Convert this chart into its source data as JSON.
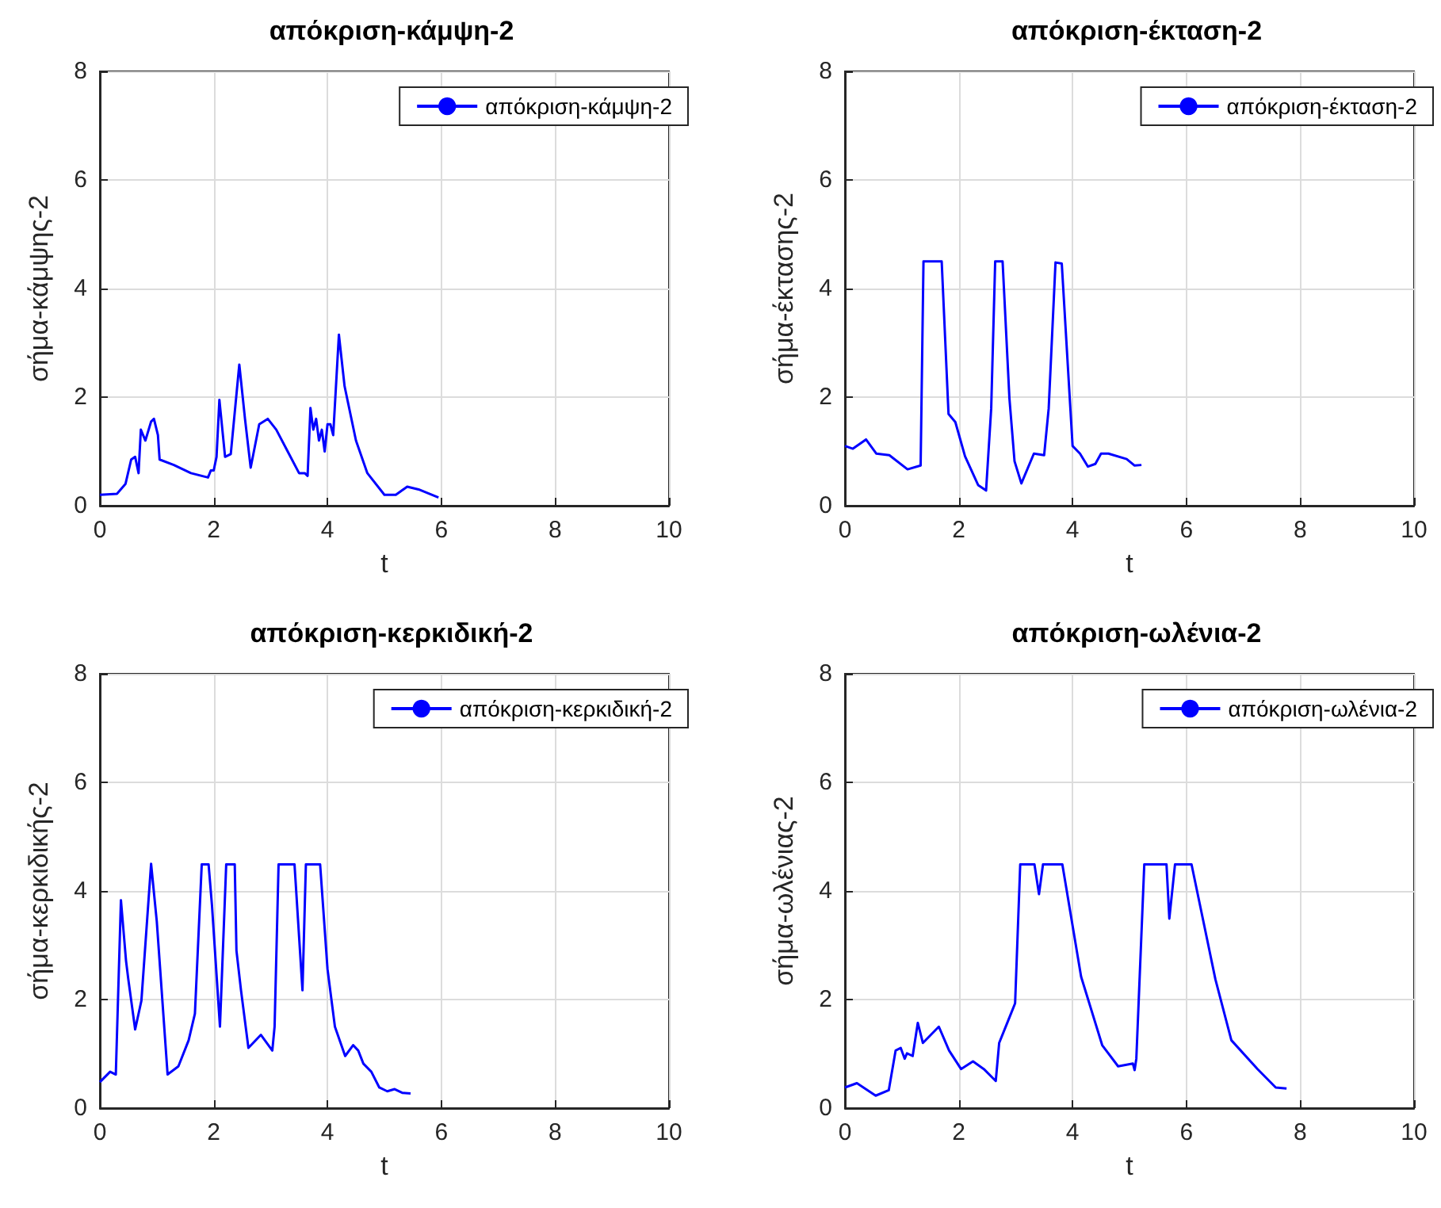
{
  "chart_data": [
    {
      "type": "line",
      "title": "απόκριση-κάμψη-2",
      "xlabel": "t",
      "ylabel": "σήμα-κάμψης-2",
      "xlim": [
        0,
        10
      ],
      "xticks": [
        0,
        2,
        4,
        6,
        8,
        10
      ],
      "ylim": [
        0,
        8
      ],
      "yticks": [
        0,
        2,
        4,
        6,
        8
      ],
      "grid": true,
      "legend": "top right",
      "series": [
        {
          "name": "απόκριση-κάμψη-2",
          "color": "#0000ff",
          "x": [
            0,
            0.3,
            0.45,
            0.55,
            0.62,
            0.68,
            0.72,
            0.8,
            0.9,
            0.95,
            1.02,
            1.05,
            1.3,
            1.6,
            1.9,
            1.95,
            2.0,
            2.05,
            2.1,
            2.2,
            2.3,
            2.45,
            2.55,
            2.65,
            2.8,
            2.95,
            3.1,
            3.3,
            3.5,
            3.6,
            3.65,
            3.7,
            3.75,
            3.8,
            3.85,
            3.9,
            3.95,
            4.0,
            4.05,
            4.1,
            4.2,
            4.3,
            4.5,
            4.7,
            5.0,
            5.2,
            5.4,
            5.6,
            5.95
          ],
          "values": [
            0.2,
            0.22,
            0.4,
            0.85,
            0.9,
            0.6,
            1.4,
            1.2,
            1.55,
            1.6,
            1.3,
            0.85,
            0.75,
            0.6,
            0.52,
            0.65,
            0.65,
            0.9,
            1.95,
            0.9,
            0.95,
            2.6,
            1.6,
            0.7,
            1.5,
            1.6,
            1.4,
            1.0,
            0.6,
            0.6,
            0.55,
            1.8,
            1.4,
            1.6,
            1.2,
            1.4,
            1.0,
            1.5,
            1.5,
            1.3,
            3.15,
            2.2,
            1.2,
            0.6,
            0.2,
            0.2,
            0.35,
            0.3,
            0.15
          ]
        }
      ]
    },
    {
      "type": "line",
      "title": "απόκριση-έκταση-2",
      "xlabel": "t",
      "ylabel": "σήμα-έκτασης-2",
      "xlim": [
        0,
        10
      ],
      "xticks": [
        0,
        2,
        4,
        6,
        8,
        10
      ],
      "ylim": [
        0,
        8
      ],
      "yticks": [
        0,
        2,
        4,
        6,
        8
      ],
      "grid": true,
      "legend": "top right",
      "series": [
        {
          "name": "απόκριση-έκταση-2",
          "color": "#0000ff",
          "x": [
            0,
            0.14,
            0.37,
            0.55,
            0.78,
            1.1,
            1.33,
            1.38,
            1.7,
            1.82,
            1.94,
            2.11,
            2.34,
            2.48,
            2.57,
            2.64,
            2.77,
            2.89,
            2.98,
            3.1,
            3.32,
            3.5,
            3.58,
            3.7,
            3.81,
            4.0,
            4.13,
            4.27,
            4.4,
            4.5,
            4.63,
            4.95,
            5.09,
            5.21
          ],
          "values": [
            1.1,
            1.05,
            1.22,
            0.96,
            0.93,
            0.67,
            0.74,
            4.5,
            4.5,
            1.69,
            1.54,
            0.91,
            0.38,
            0.28,
            1.79,
            4.5,
            4.5,
            1.98,
            0.82,
            0.41,
            0.96,
            0.93,
            1.79,
            4.48,
            4.46,
            1.1,
            0.96,
            0.72,
            0.77,
            0.96,
            0.96,
            0.86,
            0.74,
            0.75
          ]
        }
      ]
    },
    {
      "type": "line",
      "title": "απόκριση-κερκιδική-2",
      "xlabel": "t",
      "ylabel": "σήμα-κερκιδικής-2",
      "xlim": [
        0,
        10
      ],
      "xticks": [
        0,
        2,
        4,
        6,
        8,
        10
      ],
      "ylim": [
        0,
        8
      ],
      "yticks": [
        0,
        2,
        4,
        6,
        8
      ],
      "grid": true,
      "legend": "top right",
      "series": [
        {
          "name": "απόκριση-κερκιδική-2",
          "color": "#0000ff",
          "x": [
            0,
            0.18,
            0.28,
            0.37,
            0.46,
            0.5,
            0.62,
            0.73,
            0.9,
            1.0,
            1.19,
            1.38,
            1.56,
            1.67,
            1.79,
            1.91,
            1.97,
            2.11,
            2.22,
            2.37,
            2.4,
            2.48,
            2.61,
            2.83,
            3.03,
            3.07,
            3.14,
            3.42,
            3.56,
            3.62,
            3.87,
            4.0,
            4.13,
            4.31,
            4.45,
            4.54,
            4.63,
            4.77,
            4.91,
            5.05,
            5.18,
            5.32,
            5.46
          ],
          "values": [
            0.48,
            0.67,
            0.62,
            3.83,
            2.71,
            2.37,
            1.45,
            1.98,
            4.5,
            3.44,
            0.62,
            0.77,
            1.25,
            1.74,
            4.49,
            4.49,
            3.73,
            1.5,
            4.49,
            4.49,
            2.9,
            2.17,
            1.11,
            1.35,
            1.06,
            1.5,
            4.49,
            4.49,
            2.17,
            4.49,
            4.49,
            2.56,
            1.5,
            0.96,
            1.16,
            1.06,
            0.82,
            0.67,
            0.38,
            0.31,
            0.35,
            0.28,
            0.27
          ]
        }
      ]
    },
    {
      "type": "line",
      "title": "απόκριση-ωλένια-2",
      "xlabel": "t",
      "ylabel": "σήμα-ωλένιας-2",
      "xlim": [
        0,
        10
      ],
      "xticks": [
        0,
        2,
        4,
        6,
        8,
        10
      ],
      "ylim": [
        0,
        8
      ],
      "yticks": [
        0,
        2,
        4,
        6,
        8
      ],
      "grid": true,
      "legend": "top right",
      "series": [
        {
          "name": "απόκριση-ωλένια-2",
          "color": "#0000ff",
          "x": [
            0,
            0.21,
            0.54,
            0.77,
            0.89,
            0.98,
            1.05,
            1.09,
            1.19,
            1.28,
            1.37,
            1.65,
            1.83,
            2.04,
            2.25,
            2.44,
            2.65,
            2.71,
            2.99,
            3.08,
            3.33,
            3.41,
            3.48,
            3.82,
            4.15,
            4.52,
            4.8,
            5.06,
            5.09,
            5.12,
            5.26,
            5.65,
            5.7,
            5.8,
            6.09,
            6.51,
            6.79,
            7.25,
            7.57,
            7.76
          ],
          "values": [
            0.38,
            0.46,
            0.23,
            0.33,
            1.06,
            1.11,
            0.91,
            1.01,
            0.96,
            1.57,
            1.2,
            1.5,
            1.06,
            0.72,
            0.86,
            0.72,
            0.5,
            1.2,
            1.93,
            4.49,
            4.49,
            3.94,
            4.49,
            4.49,
            2.42,
            1.16,
            0.77,
            0.82,
            0.7,
            0.91,
            4.49,
            4.49,
            3.49,
            4.49,
            4.49,
            2.37,
            1.25,
            0.72,
            0.38,
            0.36
          ]
        }
      ]
    }
  ]
}
